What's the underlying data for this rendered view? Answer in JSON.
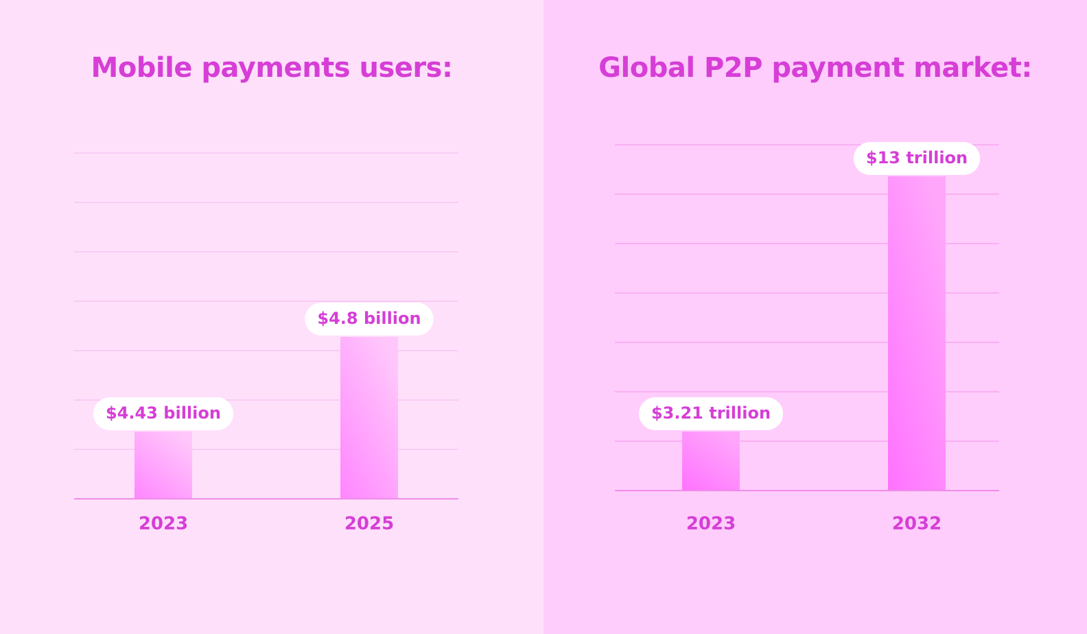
{
  "colors": {
    "accent": "#d63ed6",
    "grid_left": "#f5c6ef",
    "grid_right": "#f5a6ee",
    "axis": "#f08de8",
    "bar_light": "#ffc6fb",
    "bar_dark": "#ff72ff",
    "pill_bg": "#ffffff"
  },
  "chart_data": [
    {
      "type": "bar",
      "title": "Mobile payments users:",
      "categories": [
        "2023",
        "2025"
      ],
      "values": [
        4.43,
        4.8
      ],
      "value_labels": [
        "$4.43 billion",
        "$4.8 billion"
      ],
      "xlabel": "",
      "ylabel": "",
      "grid": true,
      "axis_ticks_visible": false
    },
    {
      "type": "bar",
      "title": "Global P2P payment market:",
      "categories": [
        "2023",
        "2032"
      ],
      "values": [
        3.21,
        13
      ],
      "value_labels": [
        "$3.21 trillion",
        "$13 trillion"
      ],
      "xlabel": "",
      "ylabel": "",
      "grid": true,
      "axis_ticks_visible": false
    }
  ]
}
